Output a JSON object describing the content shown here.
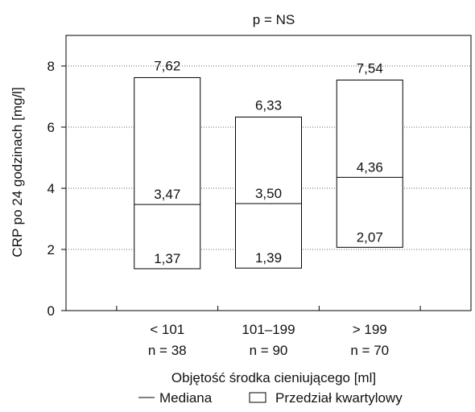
{
  "chart_data": {
    "type": "box",
    "title": "p = NS",
    "ylabel": "CRP po 24 godzinach [mg/l]",
    "xlabel": "Objętość środka cieniującego [ml]",
    "ylim": [
      0,
      9
    ],
    "yticks": [
      0,
      2,
      4,
      6,
      8
    ],
    "grid": "horizontal dotted",
    "groups": [
      {
        "category": "< 101",
        "n_label": "n = 38",
        "q1": 1.37,
        "median": 3.47,
        "q3": 7.62,
        "q1_label": "1,37",
        "median_label": "3,47",
        "q3_label": "7,62"
      },
      {
        "category": "101–199",
        "n_label": "n = 90",
        "q1": 1.39,
        "median": 3.5,
        "q3": 6.33,
        "q1_label": "1,39",
        "median_label": "3,50",
        "q3_label": "6,33"
      },
      {
        "category": "> 199",
        "n_label": "n = 70",
        "q1": 2.07,
        "median": 4.36,
        "q3": 7.54,
        "q1_label": "2,07",
        "median_label": "4,36",
        "q3_label": "7,54"
      }
    ],
    "legend": {
      "position": "bottom",
      "median_label": "Mediana",
      "box_label": "Przedział kwartylowy"
    }
  }
}
